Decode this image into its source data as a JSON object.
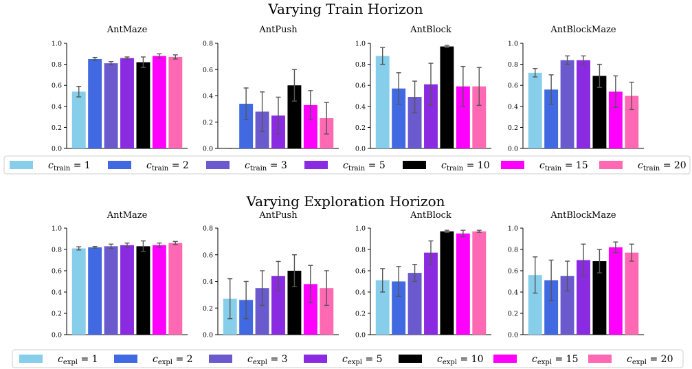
{
  "colors": [
    "#87CEEB",
    "#4169E1",
    "#6A5ACD",
    "#8A2BE2",
    "#000000",
    "#FF00FF",
    "#FF69B4"
  ],
  "chart_data": [
    {
      "type": "bar",
      "section": "Varying Train Horizon",
      "subplots": [
        {
          "title": "AntMaze",
          "ylim": [
            0,
            1.0
          ],
          "yticks": [
            "0.0",
            "0.2",
            "0.4",
            "0.6",
            "0.8",
            "1.0"
          ],
          "values": [
            0.54,
            0.85,
            0.81,
            0.86,
            0.82,
            0.88,
            0.87
          ],
          "errors": [
            0.05,
            0.015,
            0.015,
            0.01,
            0.05,
            0.02,
            0.02
          ]
        },
        {
          "title": "AntPush",
          "ylim": [
            0,
            0.8
          ],
          "yticks": [
            "0.0",
            "0.2",
            "0.4",
            "0.6",
            "0.8"
          ],
          "values": [
            0.0,
            0.34,
            0.28,
            0.25,
            0.48,
            0.33,
            0.23
          ],
          "errors": [
            0.0,
            0.12,
            0.15,
            0.14,
            0.12,
            0.11,
            0.12
          ]
        },
        {
          "title": "AntBlock",
          "ylim": [
            0,
            1.0
          ],
          "yticks": [
            "0.0",
            "0.2",
            "0.4",
            "0.6",
            "0.8",
            "1.0"
          ],
          "values": [
            0.88,
            0.57,
            0.49,
            0.61,
            0.97,
            0.59,
            0.59
          ],
          "errors": [
            0.08,
            0.15,
            0.15,
            0.2,
            0.01,
            0.19,
            0.18
          ]
        },
        {
          "title": "AntBlockMaze",
          "ylim": [
            0,
            1.0
          ],
          "yticks": [
            "0.0",
            "0.2",
            "0.4",
            "0.6",
            "0.8",
            "1.0"
          ],
          "values": [
            0.72,
            0.56,
            0.84,
            0.84,
            0.69,
            0.54,
            0.5
          ],
          "errors": [
            0.04,
            0.14,
            0.04,
            0.04,
            0.11,
            0.15,
            0.13
          ]
        }
      ],
      "legend": {
        "var": "c",
        "sub": "train",
        "values": [
          "1",
          "2",
          "3",
          "5",
          "10",
          "15",
          "20"
        ]
      }
    },
    {
      "type": "bar",
      "section": "Varying Exploration Horizon",
      "subplots": [
        {
          "title": "AntMaze",
          "ylim": [
            0,
            1.0
          ],
          "yticks": [
            "0.0",
            "0.2",
            "0.4",
            "0.6",
            "0.8",
            "1.0"
          ],
          "values": [
            0.81,
            0.82,
            0.83,
            0.84,
            0.83,
            0.84,
            0.86
          ],
          "errors": [
            0.015,
            0.008,
            0.02,
            0.02,
            0.05,
            0.02,
            0.015
          ]
        },
        {
          "title": "AntPush",
          "ylim": [
            0,
            0.8
          ],
          "yticks": [
            "0.0",
            "0.2",
            "0.4",
            "0.6",
            "0.8"
          ],
          "values": [
            0.27,
            0.26,
            0.35,
            0.44,
            0.48,
            0.38,
            0.35
          ],
          "errors": [
            0.15,
            0.14,
            0.13,
            0.11,
            0.12,
            0.14,
            0.13
          ]
        },
        {
          "title": "AntBlock",
          "ylim": [
            0,
            1.0
          ],
          "yticks": [
            "0.0",
            "0.2",
            "0.4",
            "0.6",
            "0.8",
            "1.0"
          ],
          "values": [
            0.51,
            0.5,
            0.58,
            0.77,
            0.97,
            0.95,
            0.97
          ],
          "errors": [
            0.11,
            0.14,
            0.08,
            0.11,
            0.01,
            0.03,
            0.01
          ]
        },
        {
          "title": "AntBlockMaze",
          "ylim": [
            0,
            1.0
          ],
          "yticks": [
            "0.0",
            "0.2",
            "0.4",
            "0.6",
            "0.8",
            "1.0"
          ],
          "values": [
            0.56,
            0.51,
            0.55,
            0.7,
            0.69,
            0.82,
            0.77
          ],
          "errors": [
            0.17,
            0.19,
            0.14,
            0.15,
            0.11,
            0.05,
            0.08
          ]
        }
      ],
      "legend": {
        "var": "c",
        "sub": "expl",
        "values": [
          "1",
          "2",
          "3",
          "5",
          "10",
          "15",
          "20"
        ]
      }
    }
  ]
}
